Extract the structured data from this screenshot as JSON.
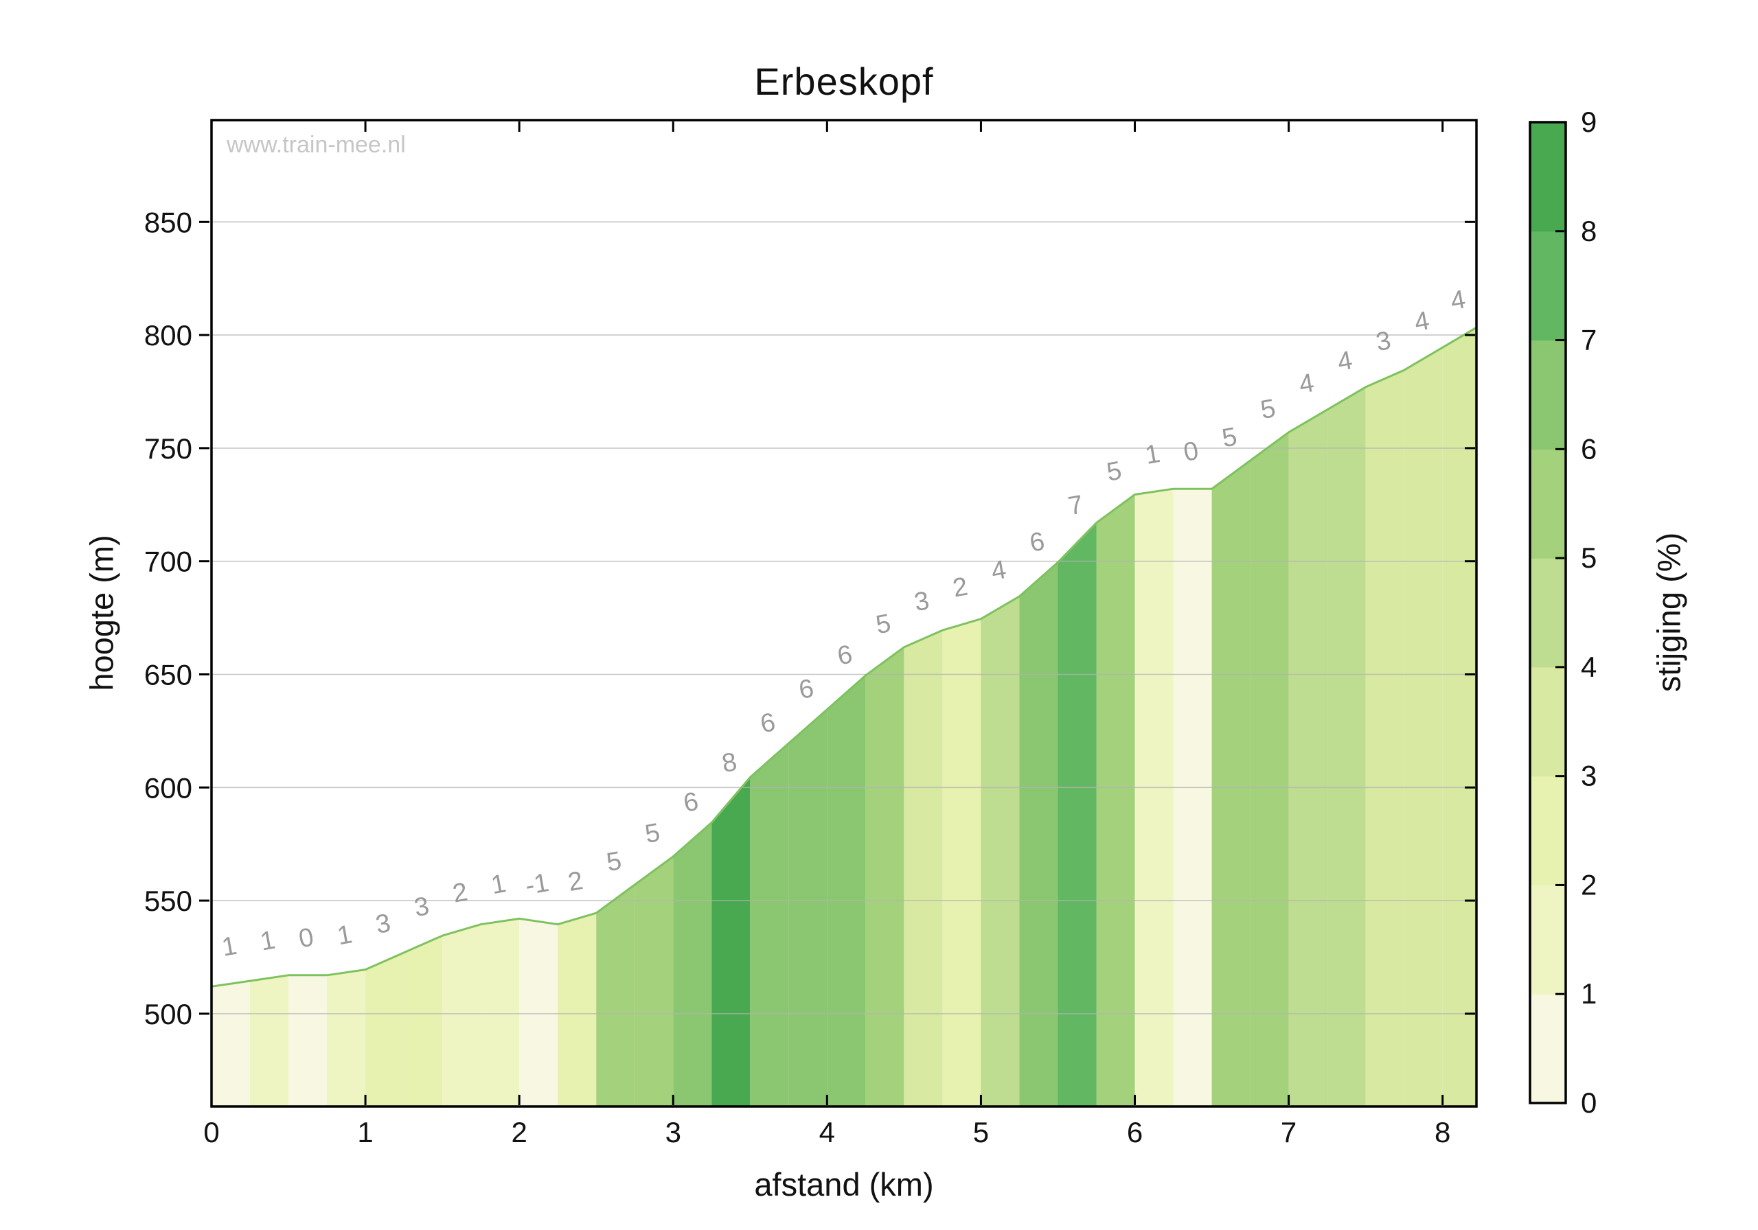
{
  "title": "Erbeskopf",
  "watermark": "www.train-mee.nl",
  "x_axis": {
    "label": "afstand (km)",
    "ticks": [
      "0",
      "1",
      "2",
      "3",
      "4",
      "5",
      "6",
      "7",
      "8"
    ],
    "tick_values": [
      0,
      1,
      2,
      3,
      4,
      5,
      6,
      7,
      8
    ]
  },
  "y_axis": {
    "label": "hoogte (m)",
    "ticks": [
      "500",
      "550",
      "600",
      "650",
      "700",
      "750",
      "800",
      "850"
    ],
    "tick_values": [
      500,
      550,
      600,
      650,
      700,
      750,
      800,
      850
    ]
  },
  "colorbar": {
    "label": "stijging (%)",
    "ticks": [
      "0",
      "1",
      "2",
      "3",
      "4",
      "5",
      "6",
      "7",
      "8",
      "9"
    ],
    "tick_values": [
      0,
      1,
      2,
      3,
      4,
      5,
      6,
      7,
      8,
      9
    ],
    "band_colors": [
      "#f8f8e2",
      "#eff4c3",
      "#e7f1b0",
      "#d8e9a2",
      "#bedd90",
      "#a4d17c",
      "#8bc671",
      "#62b762",
      "#48a950"
    ]
  },
  "colors": {
    "line": "#7ec25f",
    "grid": "#b3b3b3",
    "spine": "#000000",
    "gradient_label": "#9a9a9a",
    "background": "#ffffff"
  },
  "chart_data": {
    "type": "area",
    "title": "Erbeskopf",
    "xlabel": "afstand (km)",
    "ylabel": "hoogte (m)",
    "xlim": [
      0,
      8.22
    ],
    "ylim": [
      459,
      895
    ],
    "grid": "horizontal",
    "x_km": [
      0,
      0.25,
      0.5,
      0.75,
      1.0,
      1.25,
      1.5,
      1.75,
      2.0,
      2.25,
      2.5,
      2.75,
      3.0,
      3.25,
      3.5,
      3.75,
      4.0,
      4.25,
      4.5,
      4.75,
      5.0,
      5.25,
      5.5,
      5.75,
      6.0,
      6.25,
      6.5,
      6.75,
      7.0,
      7.25,
      7.5,
      7.75,
      8.0,
      8.22
    ],
    "elevation_m": [
      512,
      514.5,
      517,
      517,
      519.5,
      527,
      534.5,
      539.5,
      542,
      539.5,
      544.5,
      557,
      569.5,
      584.5,
      604.5,
      619.5,
      634.5,
      649.5,
      662,
      669.5,
      674.5,
      684.5,
      699.5,
      717,
      729.5,
      732,
      732,
      744.5,
      757,
      767,
      777,
      784.5,
      794.5,
      803.3
    ],
    "segments": {
      "width_km": 0.25,
      "gradient_labels": [
        "1",
        "1",
        "0",
        "1",
        "3",
        "3",
        "2",
        "1",
        "-1",
        "2",
        "5",
        "5",
        "6",
        "8",
        "6",
        "6",
        "6",
        "5",
        "3",
        "2",
        "4",
        "6",
        "7",
        "5",
        "1",
        "0",
        "5",
        "5",
        "4",
        "4",
        "3",
        "4",
        "4"
      ],
      "color_bins": [
        0,
        1,
        0,
        1,
        2,
        2,
        1,
        1,
        0,
        2,
        5,
        5,
        6,
        8,
        6,
        6,
        6,
        5,
        3,
        2,
        4,
        6,
        7,
        5,
        1,
        0,
        5,
        5,
        4,
        4,
        3,
        3,
        3
      ]
    },
    "colorbar_label": "stijging (%)",
    "colorbar_range": [
      0,
      9
    ]
  }
}
